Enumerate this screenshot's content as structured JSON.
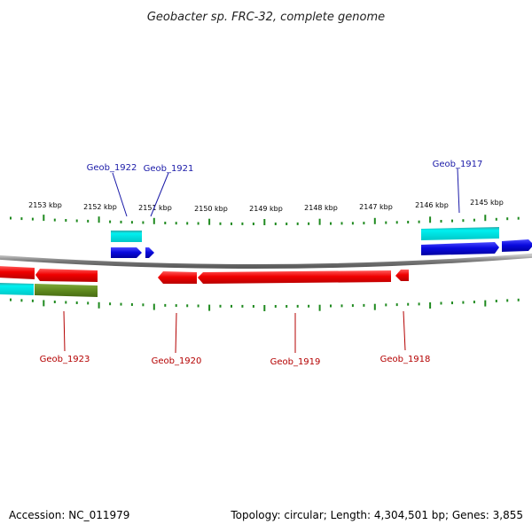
{
  "title": "Geobacter sp. FRC-32, complete genome",
  "footer": {
    "accession": "Accession: NC_011979",
    "topology": "Topology: circular; Length: 4,304,501 bp; Genes: 3,855"
  },
  "ruler": {
    "labels": [
      "2153 kbp",
      "2152 kbp",
      "2151 kbp",
      "2150 kbp",
      "2149 kbp",
      "2148 kbp",
      "2147 kbp",
      "2146 kbp",
      "2145 kbp"
    ]
  },
  "genes": {
    "top": [
      {
        "label": "Geob_1922"
      },
      {
        "label": "Geob_1921"
      },
      {
        "label": "Geob_1917"
      }
    ],
    "bottom": [
      {
        "label": "Geob_1923"
      },
      {
        "label": "Geob_1920"
      },
      {
        "label": "Geob_1919"
      },
      {
        "label": "Geob_1918"
      }
    ]
  },
  "colors": {
    "forward_cds": "#0a0adf",
    "reverse_cds": "#f00000",
    "forward_rna": "#00e5e5",
    "reverse_rna": "#00d0d0",
    "other": "#5f8a1e",
    "backbone": "#8a8a8a",
    "ticks": "#1f8a1f"
  }
}
